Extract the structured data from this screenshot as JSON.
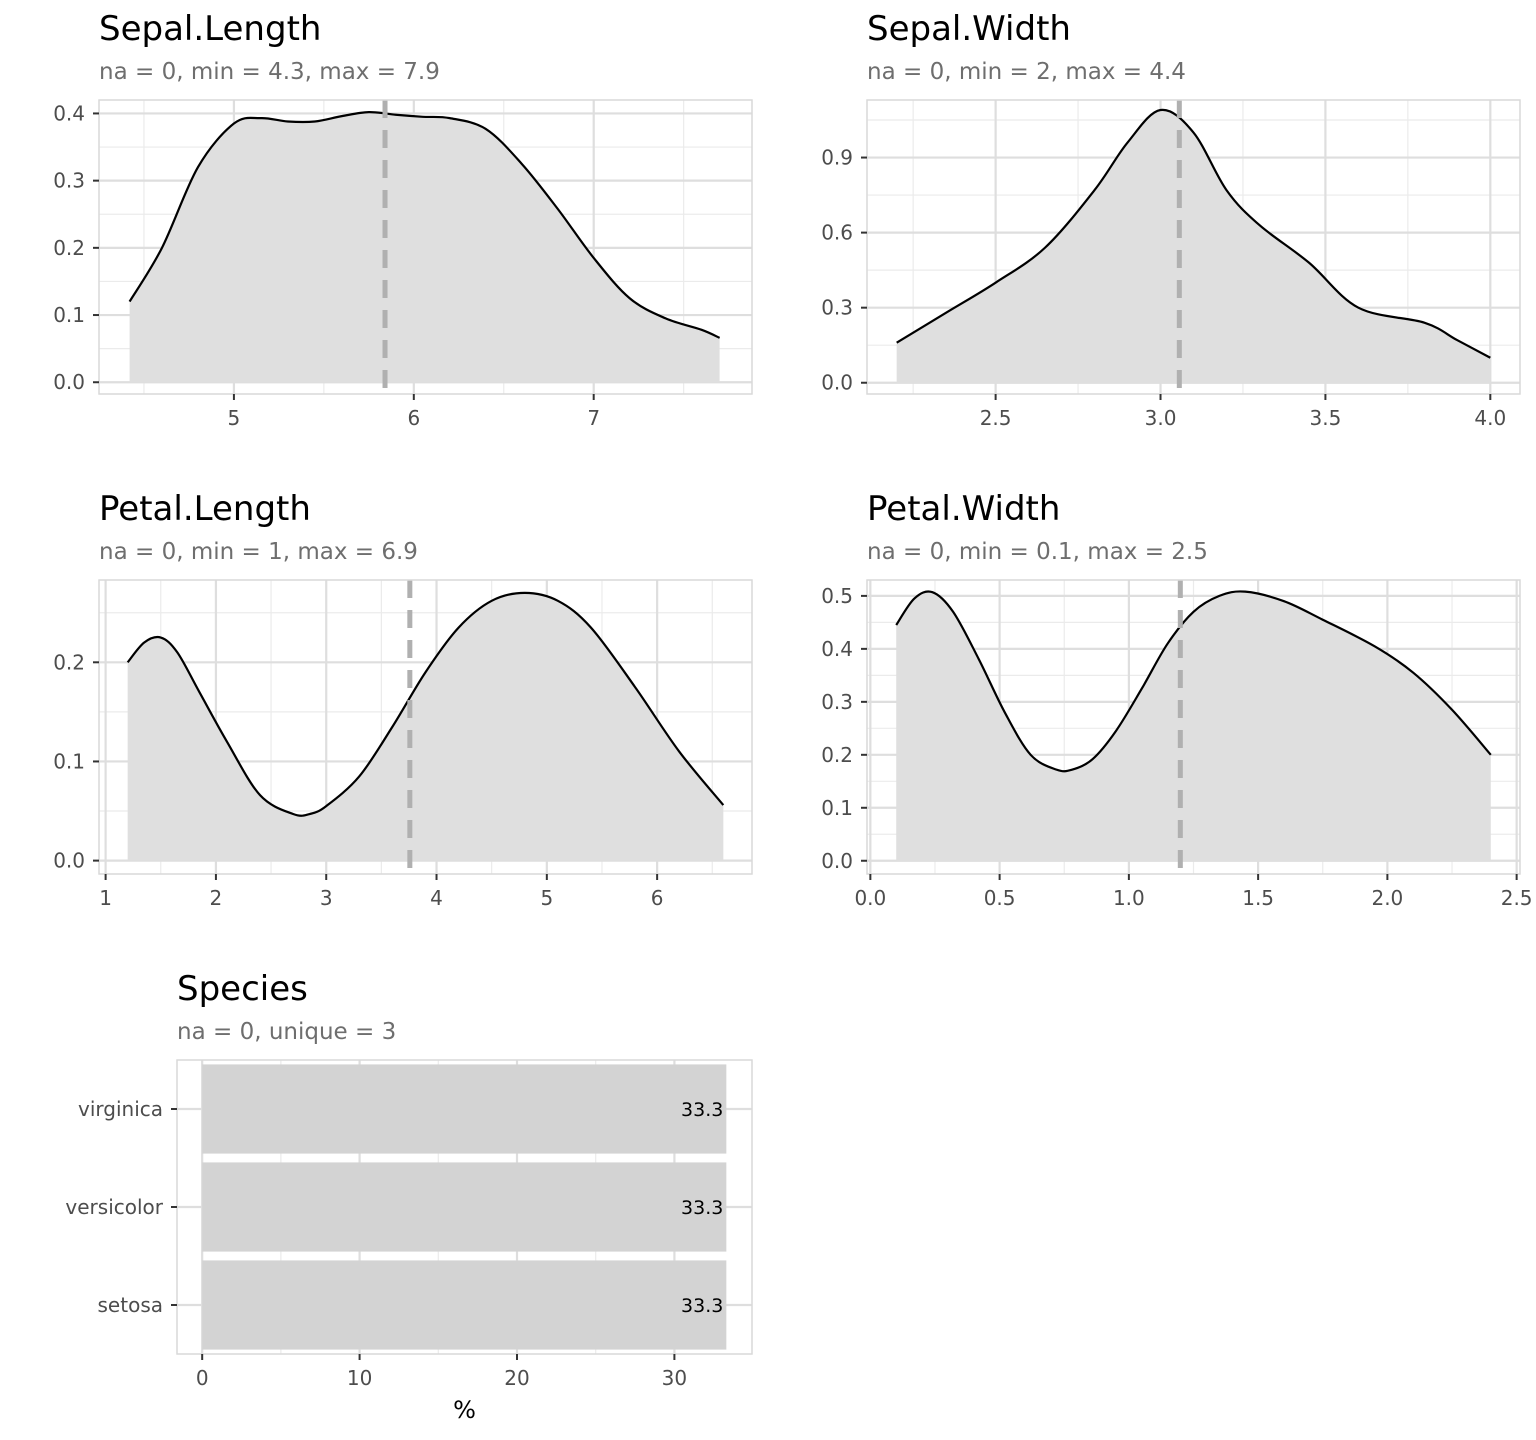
{
  "chart_data": [
    {
      "type": "area",
      "title": "Sepal.Length",
      "subtitle": "na = 0, min = 4.3, max = 7.9",
      "xlim": [
        4.25,
        7.88
      ],
      "ylim": [
        -0.0175,
        0.42
      ],
      "x_ticks": [
        5,
        6,
        7
      ],
      "x_tick_labels": [
        "5",
        "6",
        "7"
      ],
      "y_ticks": [
        0.0,
        0.1,
        0.2,
        0.3,
        0.4
      ],
      "y_tick_labels": [
        "0.0",
        "0.1",
        "0.2",
        "0.3",
        "0.4"
      ],
      "mean_line": 5.84,
      "x": [
        4.42,
        4.6,
        4.8,
        5.0,
        5.15,
        5.3,
        5.45,
        5.6,
        5.75,
        5.9,
        6.05,
        6.2,
        6.4,
        6.6,
        6.8,
        7.0,
        7.2,
        7.4,
        7.6,
        7.7
      ],
      "y": [
        0.12,
        0.2,
        0.32,
        0.385,
        0.393,
        0.388,
        0.388,
        0.396,
        0.402,
        0.398,
        0.395,
        0.393,
        0.377,
        0.325,
        0.258,
        0.185,
        0.125,
        0.095,
        0.078,
        0.066
      ],
      "grid": true
    },
    {
      "type": "area",
      "title": "Sepal.Width",
      "subtitle": "na = 0, min = 2, max = 4.4",
      "xlim": [
        2.11,
        4.09
      ],
      "ylim": [
        -0.045,
        1.13
      ],
      "x_ticks": [
        2.5,
        3.0,
        3.5,
        4.0
      ],
      "x_tick_labels": [
        "2.5",
        "3.0",
        "3.5",
        "4.0"
      ],
      "y_ticks": [
        0.0,
        0.3,
        0.6,
        0.9
      ],
      "y_tick_labels": [
        "0.0",
        "0.3",
        "0.6",
        "0.9"
      ],
      "mean_line": 3.057,
      "x": [
        2.2,
        2.35,
        2.5,
        2.65,
        2.8,
        2.9,
        3.0,
        3.1,
        3.2,
        3.3,
        3.45,
        3.6,
        3.8,
        3.9,
        4.0
      ],
      "y": [
        0.16,
        0.28,
        0.4,
        0.54,
        0.77,
        0.96,
        1.09,
        1.0,
        0.77,
        0.63,
        0.48,
        0.3,
        0.24,
        0.17,
        0.1
      ],
      "grid": true
    },
    {
      "type": "area",
      "title": "Petal.Length",
      "subtitle": "na = 0, min = 1, max = 6.9",
      "xlim": [
        0.94,
        6.86
      ],
      "ylim": [
        -0.0135,
        0.283
      ],
      "x_ticks": [
        1,
        2,
        3,
        4,
        5,
        6
      ],
      "x_tick_labels": [
        "1",
        "2",
        "3",
        "4",
        "5",
        "6"
      ],
      "y_ticks": [
        0.0,
        0.1,
        0.2
      ],
      "y_tick_labels": [
        "0.0",
        "0.1",
        "0.2"
      ],
      "mean_line": 3.758,
      "x": [
        1.2,
        1.35,
        1.5,
        1.65,
        1.85,
        2.1,
        2.4,
        2.7,
        2.85,
        3.0,
        3.3,
        3.6,
        3.9,
        4.2,
        4.5,
        4.8,
        5.1,
        5.4,
        5.8,
        6.2,
        6.6
      ],
      "y": [
        0.2,
        0.22,
        0.225,
        0.21,
        0.17,
        0.12,
        0.066,
        0.047,
        0.047,
        0.055,
        0.085,
        0.135,
        0.19,
        0.235,
        0.262,
        0.27,
        0.262,
        0.235,
        0.175,
        0.11,
        0.056
      ],
      "grid": true
    },
    {
      "type": "area",
      "title": "Petal.Width",
      "subtitle": "na = 0, min = 0.1, max = 2.5",
      "xlim": [
        -0.013,
        2.513
      ],
      "ylim": [
        -0.025,
        0.53
      ],
      "x_ticks": [
        0.0,
        0.5,
        1.0,
        1.5,
        2.0,
        2.5
      ],
      "x_tick_labels": [
        "0.0",
        "0.5",
        "1.0",
        "1.5",
        "2.0",
        "2.5"
      ],
      "y_ticks": [
        0.0,
        0.1,
        0.2,
        0.3,
        0.4,
        0.5
      ],
      "y_tick_labels": [
        "0.0",
        "0.1",
        "0.2",
        "0.3",
        "0.4",
        "0.5"
      ],
      "mean_line": 1.199,
      "x": [
        0.1,
        0.17,
        0.24,
        0.32,
        0.42,
        0.52,
        0.62,
        0.72,
        0.78,
        0.86,
        0.95,
        1.05,
        1.15,
        1.25,
        1.35,
        1.45,
        1.6,
        1.75,
        1.95,
        2.1,
        2.25,
        2.4
      ],
      "y": [
        0.445,
        0.495,
        0.507,
        0.47,
        0.38,
        0.28,
        0.2,
        0.172,
        0.172,
        0.192,
        0.245,
        0.325,
        0.41,
        0.47,
        0.5,
        0.508,
        0.49,
        0.455,
        0.405,
        0.355,
        0.285,
        0.2
      ],
      "grid": true
    },
    {
      "type": "bar",
      "orientation": "horizontal",
      "title": "Species",
      "subtitle": "na = 0, unique = 3",
      "categories": [
        "setosa",
        "versicolor",
        "virginica"
      ],
      "values": [
        33.3,
        33.3,
        33.3
      ],
      "value_labels": [
        "33.3",
        "33.3",
        "33.3"
      ],
      "xlabel": "%",
      "xlim": [
        -1.6,
        34.93
      ],
      "x_ticks": [
        0,
        10,
        20,
        30
      ],
      "x_tick_labels": [
        "0",
        "10",
        "20",
        "30"
      ],
      "grid": true
    }
  ]
}
